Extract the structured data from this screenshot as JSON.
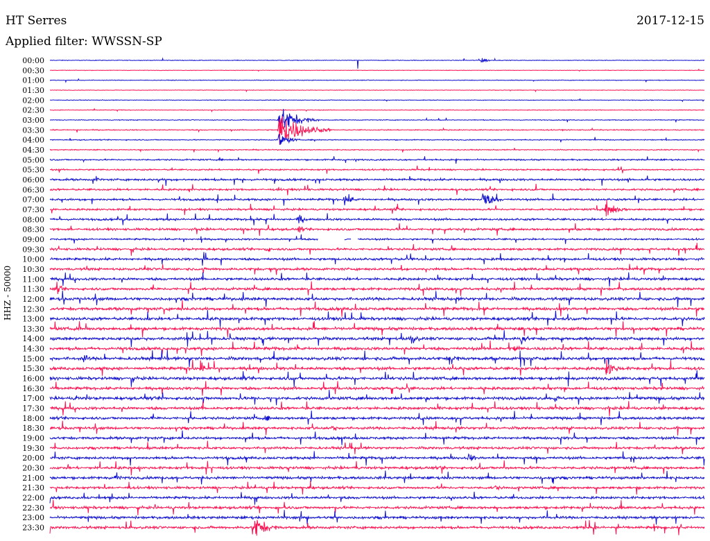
{
  "header": {
    "station": "HT Serres",
    "date": "2017-12-15",
    "filter": "Applied filter: WWSSN-SP"
  },
  "chart_data": {
    "type": "line",
    "subtype": "helicorder",
    "ylabel": "HHZ - 50000",
    "trace_colors": [
      "#1010d0",
      "#ff1050"
    ],
    "row_labels": [
      "00:00",
      "00:30",
      "01:00",
      "01:30",
      "02:00",
      "02:30",
      "03:00",
      "03:30",
      "04:00",
      "04:30",
      "05:00",
      "05:30",
      "06:00",
      "06:30",
      "07:00",
      "07:30",
      "08:00",
      "08:30",
      "09:00",
      "09:30",
      "10:00",
      "10:30",
      "11:00",
      "11:30",
      "12:00",
      "12:30",
      "13:00",
      "13:30",
      "14:00",
      "14:30",
      "15:00",
      "15:30",
      "16:00",
      "16:30",
      "17:00",
      "17:30",
      "18:00",
      "18:30",
      "19:00",
      "19:30",
      "20:00",
      "20:30",
      "21:00",
      "21:30",
      "22:00",
      "22:30",
      "23:00",
      "23:30"
    ],
    "noise_level": [
      0.4,
      0.3,
      0.4,
      0.3,
      0.4,
      0.4,
      0.5,
      0.6,
      0.6,
      0.6,
      0.9,
      0.9,
      1.3,
      1.2,
      1.3,
      1.2,
      1.3,
      1.4,
      1.1,
      1.4,
      1.5,
      1.5,
      1.6,
      1.6,
      1.8,
      1.8,
      1.8,
      1.8,
      1.8,
      1.8,
      1.9,
      1.8,
      1.8,
      1.7,
      1.8,
      1.7,
      1.6,
      1.6,
      1.6,
      1.5,
      1.6,
      1.6,
      1.6,
      1.5,
      1.5,
      1.6,
      1.6,
      1.6
    ],
    "events": [
      {
        "row": 0,
        "t": 0.66,
        "amp": 6
      },
      {
        "row": 0,
        "t": 0.47,
        "amp": 12,
        "type": "spike"
      },
      {
        "row": 6,
        "t": 0.35,
        "amp": 22
      },
      {
        "row": 7,
        "t": 0.35,
        "amp": 28
      },
      {
        "row": 8,
        "t": 0.35,
        "amp": 12
      },
      {
        "row": 12,
        "t": 0.07,
        "amp": 6
      },
      {
        "row": 14,
        "t": 0.45,
        "amp": 10
      },
      {
        "row": 14,
        "t": 0.66,
        "amp": 14
      },
      {
        "row": 15,
        "t": 0.85,
        "amp": 14
      },
      {
        "row": 16,
        "t": 0.38,
        "amp": 8
      },
      {
        "row": 17,
        "t": 0.38,
        "amp": 6
      },
      {
        "row": 19,
        "t": 0.33,
        "amp": 6
      },
      {
        "row": 23,
        "t": 0.01,
        "amp": 8
      },
      {
        "row": 28,
        "t": 0.55,
        "amp": 10
      },
      {
        "row": 28,
        "t": 0.72,
        "amp": 9
      },
      {
        "row": 29,
        "t": 0.71,
        "amp": 8
      },
      {
        "row": 30,
        "t": 0.05,
        "amp": 8
      },
      {
        "row": 30,
        "t": 0.61,
        "amp": 10
      },
      {
        "row": 31,
        "t": 0.23,
        "amp": 8
      },
      {
        "row": 31,
        "t": 0.85,
        "amp": 13
      },
      {
        "row": 34,
        "t": 0.04,
        "amp": 6
      },
      {
        "row": 34,
        "t": 0.77,
        "amp": 7
      },
      {
        "row": 36,
        "t": 0.33,
        "amp": 6
      },
      {
        "row": 37,
        "t": 0.43,
        "amp": 7
      },
      {
        "row": 40,
        "t": 0.64,
        "amp": 8
      },
      {
        "row": 42,
        "t": 0.1,
        "amp": 7
      },
      {
        "row": 43,
        "t": 0.68,
        "amp": 6
      },
      {
        "row": 47,
        "t": 0.31,
        "amp": 18
      }
    ],
    "gaps": [
      {
        "row": 18,
        "t_start": 0.41,
        "t_end": 0.45
      },
      {
        "row": 18,
        "t_start": 0.46,
        "t_end": 0.47
      }
    ]
  }
}
